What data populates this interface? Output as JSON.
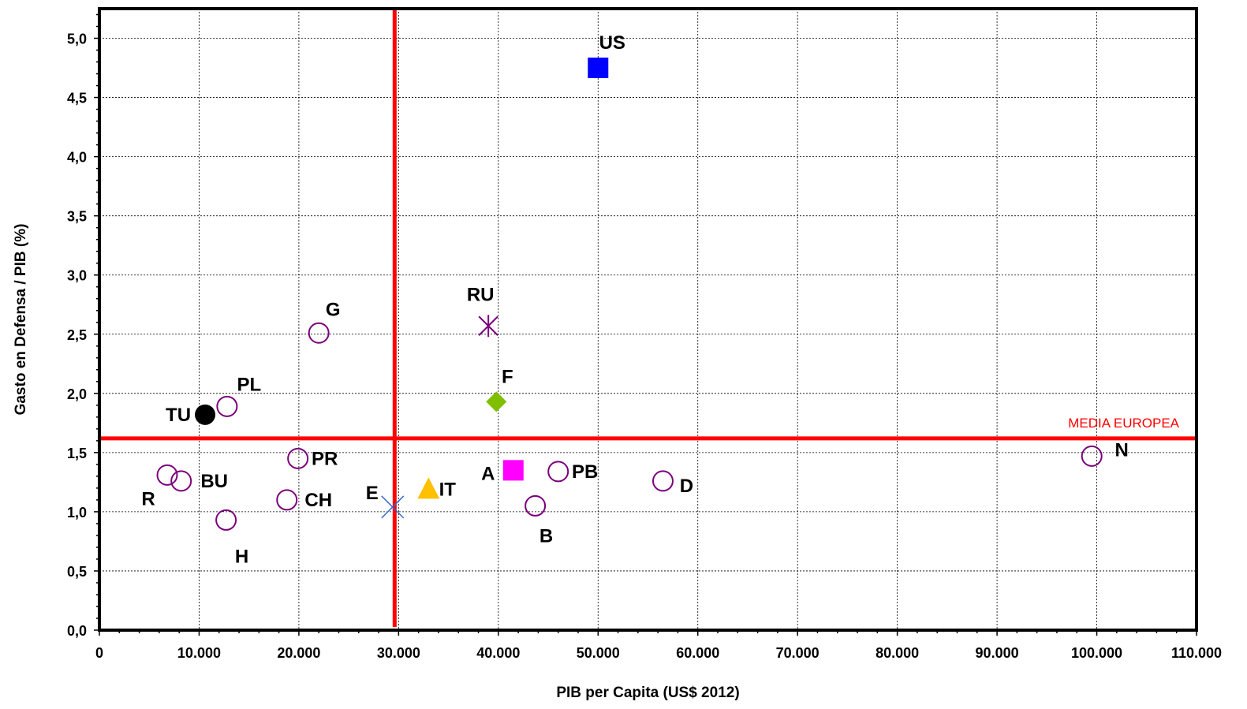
{
  "chart_data": {
    "type": "scatter",
    "xlabel": "PIB per Capita (US$ 2012)",
    "ylabel": "Gasto en Defensa / PIB (%)",
    "xlim": [
      0,
      110000
    ],
    "ylim": [
      0,
      5.25
    ],
    "x_ticks": [
      0,
      10000,
      20000,
      30000,
      40000,
      50000,
      60000,
      70000,
      80000,
      90000,
      100000,
      110000
    ],
    "x_tick_labels": [
      "0",
      "10.000",
      "20.000",
      "30.000",
      "40.000",
      "50.000",
      "60.000",
      "70.000",
      "80.000",
      "90.000",
      "100.000",
      "110.000"
    ],
    "y_ticks": [
      0,
      0.5,
      1,
      1.5,
      2,
      2.5,
      3,
      3.5,
      4,
      4.5,
      5
    ],
    "y_tick_labels": [
      "0,0",
      "0,5",
      "1,0",
      "1,5",
      "2,0",
      "2,5",
      "3,0",
      "3,5",
      "4,0",
      "4,5",
      "5,0"
    ],
    "grid": true,
    "reference_lines": [
      {
        "orientation": "vertical",
        "value": 29600,
        "label": "",
        "color": "#ff0000"
      },
      {
        "orientation": "horizontal",
        "value": 1.62,
        "label": "MEDIA EUROPEA",
        "color": "#ff0000"
      }
    ],
    "points": [
      {
        "label": "US",
        "x": 50000,
        "y": 4.75,
        "marker": "square",
        "color": "#0000ff"
      },
      {
        "label": "G",
        "x": 22000,
        "y": 2.51,
        "marker": "circle-open",
        "color": "#7b007b"
      },
      {
        "label": "RU",
        "x": 39000,
        "y": 2.57,
        "marker": "star-x",
        "color": "#7b007b"
      },
      {
        "label": "F",
        "x": 39800,
        "y": 1.93,
        "marker": "diamond",
        "color": "#7fbf00"
      },
      {
        "label": "PL",
        "x": 12800,
        "y": 1.89,
        "marker": "circle-open",
        "color": "#7b007b"
      },
      {
        "label": "TU",
        "x": 10600,
        "y": 1.82,
        "marker": "circle-filled",
        "color": "#000000"
      },
      {
        "label": "PR",
        "x": 19900,
        "y": 1.45,
        "marker": "circle-open",
        "color": "#7b007b"
      },
      {
        "label": "R",
        "x": 6800,
        "y": 1.31,
        "marker": "circle-open",
        "color": "#7b007b"
      },
      {
        "label": "BU",
        "x": 8200,
        "y": 1.26,
        "marker": "circle-open",
        "color": "#7b007b"
      },
      {
        "label": "CH",
        "x": 18800,
        "y": 1.1,
        "marker": "circle-open",
        "color": "#7b007b"
      },
      {
        "label": "H",
        "x": 12700,
        "y": 0.93,
        "marker": "circle-open",
        "color": "#7b007b"
      },
      {
        "label": "E",
        "x": 29400,
        "y": 1.04,
        "marker": "cross",
        "color": "#3366cc"
      },
      {
        "label": "IT",
        "x": 33000,
        "y": 1.19,
        "marker": "triangle",
        "color": "#ffc000"
      },
      {
        "label": "A",
        "x": 41500,
        "y": 1.35,
        "marker": "square",
        "color": "#ff00ff"
      },
      {
        "label": "B",
        "x": 43700,
        "y": 1.05,
        "marker": "circle-open",
        "color": "#7b007b"
      },
      {
        "label": "PB",
        "x": 46000,
        "y": 1.34,
        "marker": "circle-open",
        "color": "#7b007b"
      },
      {
        "label": "D",
        "x": 56500,
        "y": 1.26,
        "marker": "circle-open",
        "color": "#7b007b"
      },
      {
        "label": "N",
        "x": 99500,
        "y": 1.47,
        "marker": "circle-open",
        "color": "#7b007b"
      }
    ]
  }
}
